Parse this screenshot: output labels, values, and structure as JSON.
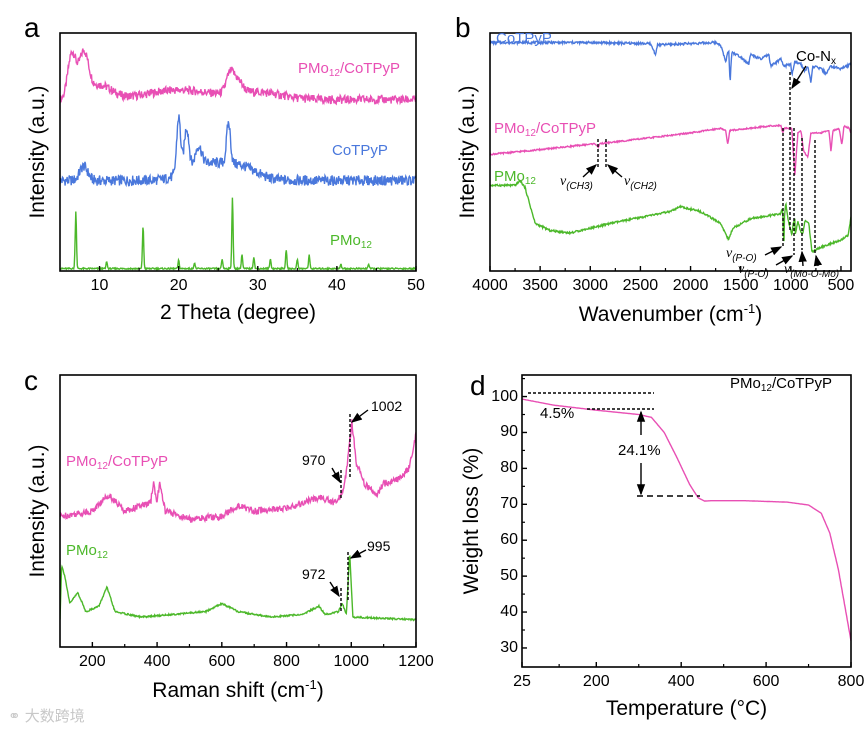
{
  "colors": {
    "pink": "#e84fb4",
    "blue": "#4a78dc",
    "green": "#4cb82a",
    "axis": "#000000"
  },
  "watermark": "大数跨境",
  "chart_data": [
    {
      "id": "a",
      "letter": "a",
      "type": "line",
      "xlabel": "2 Theta (degree)",
      "ylabel": "Intensity (a.u.)",
      "xlim": [
        5,
        50
      ],
      "ylim": [
        0,
        10
      ],
      "xticks": [
        10,
        20,
        30,
        40,
        50
      ],
      "series": [
        {
          "name": "PMo12/CoTPyP",
          "label": {
            "base": "PMo",
            "sub": "12",
            "rest": "/CoTPyP"
          },
          "color": "pink",
          "baseline": 7.2,
          "noise": 0.18,
          "peaks": [
            [
              6.5,
              1.9,
              0.5
            ],
            [
              8.0,
              1.8,
              0.6
            ],
            [
              10,
              0.6,
              1.5
            ],
            [
              20,
              0.4,
              4
            ],
            [
              26.5,
              0.8,
              0.5
            ],
            [
              27.5,
              0.5,
              0.6
            ],
            [
              30,
              0.3,
              3
            ]
          ]
        },
        {
          "name": "CoTPyP",
          "label": {
            "base": "CoTPyP",
            "sub": "",
            "rest": ""
          },
          "color": "blue",
          "baseline": 3.8,
          "noise": 0.22,
          "peaks": [
            [
              8,
              0.6,
              0.5
            ],
            [
              20,
              2.4,
              0.25
            ],
            [
              21,
              1.8,
              0.3
            ],
            [
              22.5,
              0.8,
              0.4
            ],
            [
              23.5,
              0.7,
              2.5
            ],
            [
              26.3,
              1.7,
              0.25
            ],
            [
              28,
              0.5,
              2
            ]
          ]
        },
        {
          "name": "PMo12",
          "label": {
            "base": "PMo",
            "sub": "12",
            "rest": ""
          },
          "color": "green",
          "baseline": 0.1,
          "noise": 0.03,
          "peaks": [
            [
              7,
              2.4,
              0.08
            ],
            [
              10.9,
              0.3,
              0.08
            ],
            [
              15.5,
              1.8,
              0.08
            ],
            [
              20,
              0.35,
              0.08
            ],
            [
              22,
              0.25,
              0.08
            ],
            [
              25.5,
              0.4,
              0.08
            ],
            [
              26.8,
              3.0,
              0.08
            ],
            [
              28,
              0.6,
              0.08
            ],
            [
              29.5,
              0.5,
              0.08
            ],
            [
              31.6,
              0.4,
              0.08
            ],
            [
              33.6,
              0.8,
              0.08
            ],
            [
              35,
              0.4,
              0.08
            ],
            [
              36.5,
              0.6,
              0.08
            ],
            [
              40.5,
              0.2,
              0.08
            ],
            [
              44,
              0.2,
              0.08
            ]
          ]
        }
      ]
    },
    {
      "id": "b",
      "letter": "b",
      "type": "line",
      "xlabel": "Wavenumber (cm",
      "xlabel_sup": "-1",
      "xlabel_end": ")",
      "ylabel": "Intensity (a.u.)",
      "xlim": [
        4000,
        400
      ],
      "ylim": [
        0,
        10
      ],
      "xticks": [
        4000,
        3500,
        3000,
        2500,
        2000,
        1500,
        1000,
        500
      ],
      "series": [
        {
          "name": "CoTPyP",
          "label": {
            "base": "CoTPyP",
            "sub": "",
            "rest": ""
          },
          "color": "blue",
          "noise": 0.05,
          "points": [
            [
              4000,
              9.6
            ],
            [
              3000,
              9.6
            ],
            [
              2400,
              9.55
            ],
            [
              2350,
              9.1
            ],
            [
              2330,
              9.5
            ],
            [
              1750,
              9.6
            ],
            [
              1700,
              9.5
            ],
            [
              1650,
              8.8
            ],
            [
              1620,
              9.3
            ],
            [
              1605,
              7.9
            ],
            [
              1590,
              9.2
            ],
            [
              1500,
              9.0
            ],
            [
              1420,
              8.7
            ],
            [
              1400,
              9.1
            ],
            [
              1300,
              8.9
            ],
            [
              1220,
              9.1
            ],
            [
              1200,
              8.6
            ],
            [
              1100,
              8.9
            ],
            [
              1070,
              8.6
            ],
            [
              1000,
              8.7
            ],
            [
              990,
              8.2
            ],
            [
              960,
              8.8
            ],
            [
              900,
              8.7
            ],
            [
              860,
              8.4
            ],
            [
              830,
              8.6
            ],
            [
              800,
              7.9
            ],
            [
              780,
              8.6
            ],
            [
              700,
              8.5
            ],
            [
              650,
              8.3
            ],
            [
              600,
              8.6
            ],
            [
              500,
              8.5
            ],
            [
              400,
              8.7
            ]
          ]
        },
        {
          "name": "PMo12/CoTPyP",
          "label": {
            "base": "PMo",
            "sub": "12",
            "rest": "/CoTPyP"
          },
          "color": "pink",
          "noise": 0.03,
          "points": [
            [
              4000,
              4.9
            ],
            [
              3500,
              5.1
            ],
            [
              2950,
              5.35
            ],
            [
              2920,
              5.2
            ],
            [
              2900,
              5.35
            ],
            [
              2000,
              5.8
            ],
            [
              1700,
              6.0
            ],
            [
              1650,
              5.9
            ],
            [
              1630,
              5.3
            ],
            [
              1610,
              5.9
            ],
            [
              1200,
              6.1
            ],
            [
              1100,
              6.1
            ],
            [
              1080,
              5.8
            ],
            [
              1065,
              6.0
            ],
            [
              990,
              6.0
            ],
            [
              960,
              4.0
            ],
            [
              930,
              5.8
            ],
            [
              900,
              5.9
            ],
            [
              870,
              5.0
            ],
            [
              830,
              4.8
            ],
            [
              800,
              5.8
            ],
            [
              700,
              5.8
            ],
            [
              620,
              5.9
            ],
            [
              600,
              5.0
            ],
            [
              580,
              5.9
            ],
            [
              520,
              6.0
            ],
            [
              490,
              5.3
            ],
            [
              470,
              6.1
            ],
            [
              420,
              6.0
            ],
            [
              400,
              5.8
            ]
          ]
        },
        {
          "name": "PMo12",
          "label": {
            "base": "PMo",
            "sub": "12",
            "rest": ""
          },
          "color": "green",
          "noise": 0.04,
          "points": [
            [
              4000,
              3.6
            ],
            [
              3750,
              3.6
            ],
            [
              3700,
              3.8
            ],
            [
              3650,
              3.5
            ],
            [
              3550,
              2.0
            ],
            [
              3400,
              1.7
            ],
            [
              3200,
              1.6
            ],
            [
              2800,
              2.0
            ],
            [
              2200,
              2.5
            ],
            [
              2100,
              2.7
            ],
            [
              1900,
              2.5
            ],
            [
              1700,
              2.0
            ],
            [
              1620,
              1.3
            ],
            [
              1580,
              1.8
            ],
            [
              1400,
              2.2
            ],
            [
              1100,
              2.4
            ],
            [
              1090,
              2.6
            ],
            [
              1080,
              2.5
            ],
            [
              1070,
              0.9
            ],
            [
              1065,
              2.2
            ],
            [
              1050,
              2.9
            ],
            [
              1030,
              2.2
            ],
            [
              990,
              1.5
            ],
            [
              975,
              2.0
            ],
            [
              960,
              2.2
            ],
            [
              955,
              1.5
            ],
            [
              930,
              2.1
            ],
            [
              900,
              1.6
            ],
            [
              880,
              1.6
            ],
            [
              860,
              2.1
            ],
            [
              820,
              2.0
            ],
            [
              790,
              0.8
            ],
            [
              700,
              1.0
            ],
            [
              500,
              1.3
            ],
            [
              430,
              1.5
            ],
            [
              410,
              2.0
            ],
            [
              400,
              2.3
            ]
          ]
        }
      ],
      "annotations": {
        "co_nx": {
          "base": "Co-N",
          "sub": "x"
        },
        "ch3": {
          "nu": "ν",
          "sub": "(CH3)"
        },
        "ch2": {
          "nu": "ν",
          "sub": "(CH2)"
        },
        "po1": {
          "nu": "ν",
          "sub": "(P-O)"
        },
        "po2": {
          "nu": "ν",
          "sub": "(P-O)"
        },
        "momo": {
          "nu": "ν",
          "sub": "(Mo-O-Mo)"
        }
      }
    },
    {
      "id": "c",
      "letter": "c",
      "type": "line",
      "xlabel": "Raman shift (cm",
      "xlabel_sup": "-1",
      "xlabel_end": ")",
      "ylabel": "Intensity (a.u.)",
      "xlim": [
        100,
        1200
      ],
      "ylim": [
        0,
        10
      ],
      "xticks": [
        200,
        400,
        600,
        800,
        1000,
        1200
      ],
      "series": [
        {
          "name": "PMo12/CoTPyP",
          "label": {
            "base": "PMo",
            "sub": "12",
            "rest": "/CoTPyP"
          },
          "color": "pink",
          "noise": 0.12,
          "points": [
            [
              100,
              4.8
            ],
            [
              200,
              5.0
            ],
            [
              250,
              5.6
            ],
            [
              300,
              5.0
            ],
            [
              380,
              5.3
            ],
            [
              390,
              6.1
            ],
            [
              398,
              5.3
            ],
            [
              408,
              6.0
            ],
            [
              425,
              5.0
            ],
            [
              500,
              4.7
            ],
            [
              600,
              4.8
            ],
            [
              650,
              5.2
            ],
            [
              700,
              5.0
            ],
            [
              800,
              5.1
            ],
            [
              900,
              5.5
            ],
            [
              950,
              5.3
            ],
            [
              970,
              5.6
            ],
            [
              985,
              6.4
            ],
            [
              1002,
              8.3
            ],
            [
              1015,
              6.8
            ],
            [
              1040,
              6.0
            ],
            [
              1080,
              5.6
            ],
            [
              1100,
              6.0
            ],
            [
              1150,
              6.2
            ],
            [
              1180,
              6.6
            ],
            [
              1200,
              7.8
            ]
          ]
        },
        {
          "name": "PMo12",
          "label": {
            "base": "PMo",
            "sub": "12",
            "rest": ""
          },
          "color": "green",
          "noise": 0.03,
          "points": [
            [
              100,
              1.0
            ],
            [
              105,
              3.0
            ],
            [
              115,
              2.6
            ],
            [
              130,
              1.6
            ],
            [
              155,
              2.0
            ],
            [
              180,
              1.3
            ],
            [
              220,
              1.5
            ],
            [
              245,
              2.2
            ],
            [
              270,
              1.3
            ],
            [
              350,
              1.1
            ],
            [
              450,
              1.2
            ],
            [
              550,
              1.3
            ],
            [
              600,
              1.6
            ],
            [
              650,
              1.3
            ],
            [
              750,
              1.1
            ],
            [
              850,
              1.2
            ],
            [
              900,
              1.5
            ],
            [
              920,
              1.2
            ],
            [
              960,
              1.3
            ],
            [
              972,
              1.6
            ],
            [
              985,
              1.2
            ],
            [
              995,
              3.5
            ],
            [
              1005,
              1.1
            ],
            [
              1200,
              1.0
            ]
          ]
        }
      ],
      "annotations": {
        "p970": "970",
        "p1002": "1002",
        "p972": "972",
        "p995": "995"
      }
    },
    {
      "id": "d",
      "letter": "d",
      "type": "line",
      "xlabel": "Temperature (°C)",
      "ylabel": "Weight loss (%)",
      "xlim": [
        25,
        800
      ],
      "ylim": [
        24.7,
        106
      ],
      "xticks": [
        25,
        200,
        400,
        600,
        800
      ],
      "yticks": [
        30,
        40,
        50,
        60,
        70,
        80,
        90,
        100
      ],
      "series": [
        {
          "name": "PMo12/CoTPyP",
          "label": {
            "base": "PMo",
            "sub": "12",
            "rest": "/CoTPyP"
          },
          "color": "pink",
          "noise": 0,
          "points": [
            [
              25,
              99.3
            ],
            [
              100,
              97.6
            ],
            [
              200,
              96.2
            ],
            [
              300,
              95.0
            ],
            [
              330,
              94.2
            ],
            [
              360,
              90
            ],
            [
              390,
              83
            ],
            [
              420,
              75.5
            ],
            [
              440,
              71.8
            ],
            [
              455,
              70.9
            ],
            [
              470,
              71.0
            ],
            [
              550,
              71.0
            ],
            [
              650,
              70.6
            ],
            [
              700,
              69.8
            ],
            [
              730,
              67.5
            ],
            [
              750,
              62
            ],
            [
              770,
              52
            ],
            [
              785,
              42
            ],
            [
              800,
              32
            ]
          ]
        }
      ],
      "annotations": {
        "step1": "4.5%",
        "step2": "24.1%"
      }
    }
  ]
}
